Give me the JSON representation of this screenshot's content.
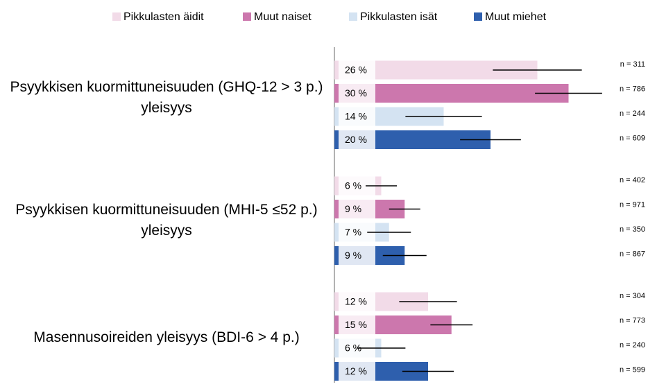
{
  "chart_data": {
    "type": "hbar",
    "categories": [
      "Psyykkisen kuormittuneisuuden (GHQ-12 > 3 p.) yleisyys",
      "Psyykkisen kuormittuneisuuden (MHI-5 ≤52 p.) yleisyys",
      "Masennusoireiden yleisyys (BDI-6 > 4 p.)"
    ],
    "series": [
      {
        "name": "Pikkulasten äidit",
        "color": "#f2dbe8",
        "values": [
          26,
          6,
          12
        ],
        "value_labels": [
          "26 %",
          "6 %",
          "12 %"
        ],
        "errors": [
          5.7,
          2.0,
          3.7
        ],
        "n_labels": [
          "n = 311",
          "n = 402",
          "n = 304"
        ]
      },
      {
        "name": "Muut naiset",
        "color": "#cc77ad",
        "values": [
          30,
          9,
          15
        ],
        "value_labels": [
          "30 %",
          "9 %",
          "15 %"
        ],
        "errors": [
          4.3,
          2.0,
          2.7
        ],
        "n_labels": [
          "n = 786",
          "n = 971",
          "n = 773"
        ]
      },
      {
        "name": "Pikkulasten isät",
        "color": "#d4e3f2",
        "values": [
          14,
          7,
          6
        ],
        "value_labels": [
          "14 %",
          "7 %",
          "6 %"
        ],
        "errors": [
          4.9,
          2.8,
          3.1
        ],
        "n_labels": [
          "n = 244",
          "n = 350",
          "n = 240"
        ]
      },
      {
        "name": "Muut miehet",
        "color": "#2e5fad",
        "values": [
          20,
          9,
          12
        ],
        "value_labels": [
          "20 %",
          "9 %",
          "12 %"
        ],
        "errors": [
          3.9,
          2.8,
          3.3
        ],
        "n_labels": [
          "n = 609",
          "n = 867",
          "n = 599"
        ]
      }
    ],
    "xlim": [
      0,
      40
    ],
    "legend": "top"
  }
}
